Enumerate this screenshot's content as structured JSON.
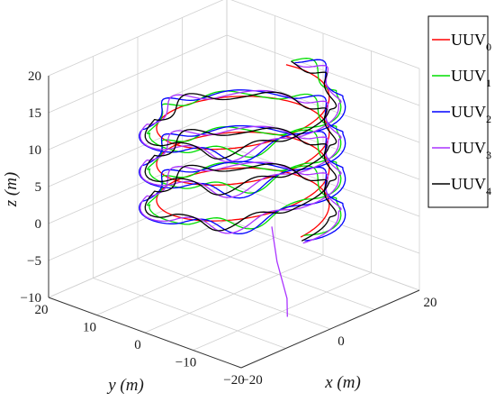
{
  "chart_data": {
    "type": "line3d",
    "title": "",
    "xlabel": "x (m)",
    "ylabel": "y (m)",
    "zlabel": "z (m)",
    "xlim": [
      -20,
      20
    ],
    "ylim": [
      -20,
      20
    ],
    "zlim": [
      -10,
      20
    ],
    "x_ticks": [
      "−20",
      "0",
      "20"
    ],
    "y_ticks": [
      "20",
      "10",
      "0",
      "−10",
      "−20"
    ],
    "z_ticks": [
      "20",
      "15",
      "10",
      "5",
      "0",
      "−5",
      "−10"
    ],
    "grid": true,
    "legend_position": "top-right",
    "series": [
      {
        "name": "UUV0",
        "color": "#ff0000"
      },
      {
        "name": "UUV1",
        "color": "#00dd00"
      },
      {
        "name": "UUV2",
        "color": "#0000ff"
      },
      {
        "name": "UUV3",
        "color": "#aa33ff"
      },
      {
        "name": "UUV4",
        "color": "#000000"
      }
    ],
    "legend": [
      {
        "base": "UUV",
        "sub": "0"
      },
      {
        "base": "UUV",
        "sub": "1"
      },
      {
        "base": "UUV",
        "sub": "2"
      },
      {
        "base": "UUV",
        "sub": "3"
      },
      {
        "base": "UUV",
        "sub": "4"
      }
    ]
  }
}
